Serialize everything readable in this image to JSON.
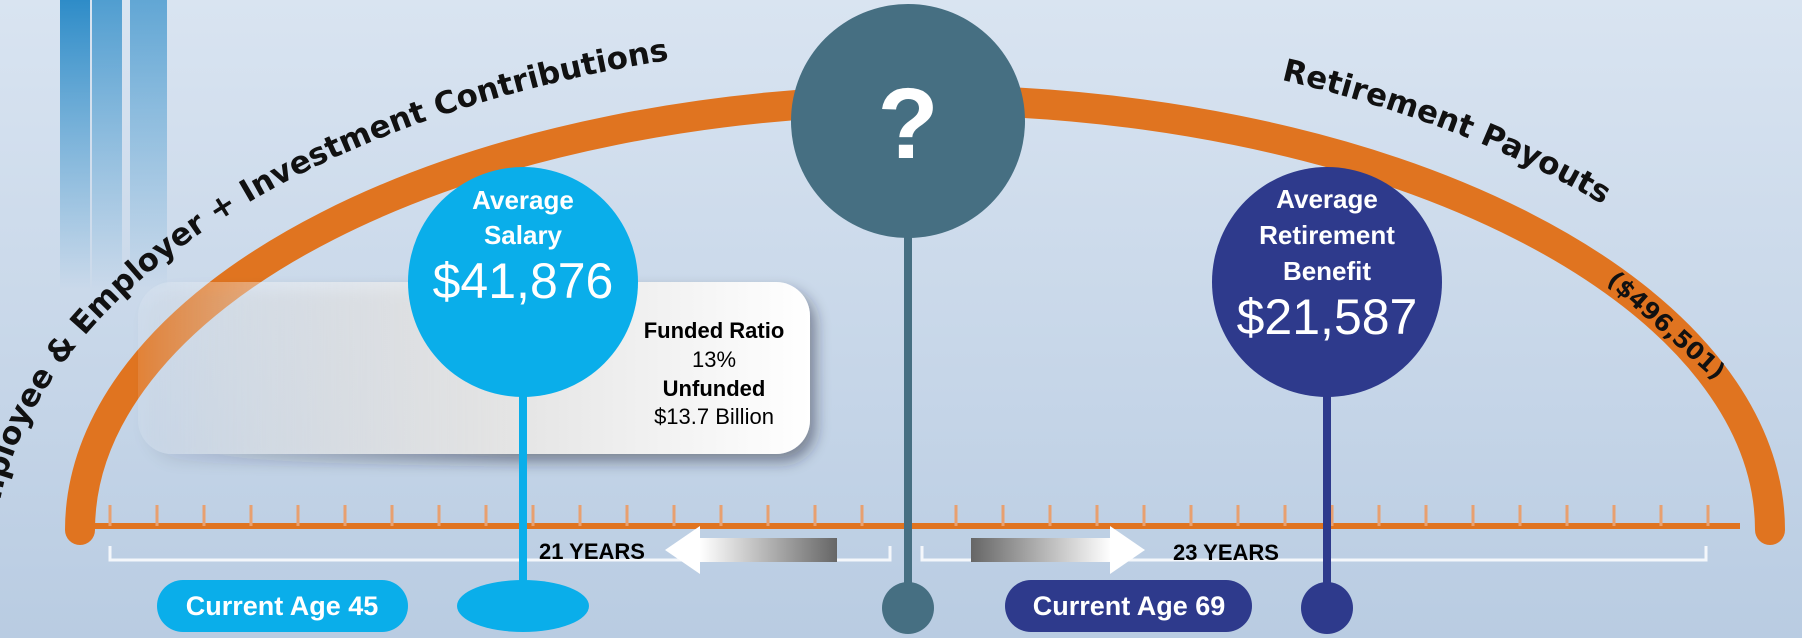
{
  "arc": {
    "left_label": "Employee & Employer + Investment Contributions",
    "right_label": "Retirement Payouts",
    "payout_total": "($496,501)"
  },
  "unknown": {
    "label": "?"
  },
  "salary": {
    "lines": [
      "Average",
      "Salary"
    ],
    "value": "$41,876"
  },
  "funding": {
    "ratio_label": "Funded Ratio",
    "ratio_value": "13%",
    "unfunded_label": "Unfunded",
    "unfunded_value": "$13.7 Billion"
  },
  "benefit": {
    "lines": [
      "Average",
      "Retirement",
      "Benefit"
    ],
    "value": "$21,587"
  },
  "spans": {
    "working": "21 YEARS",
    "retired": "23 YEARS"
  },
  "ages": {
    "current": "Current Age 45",
    "retirement": "Current Age 69"
  }
}
